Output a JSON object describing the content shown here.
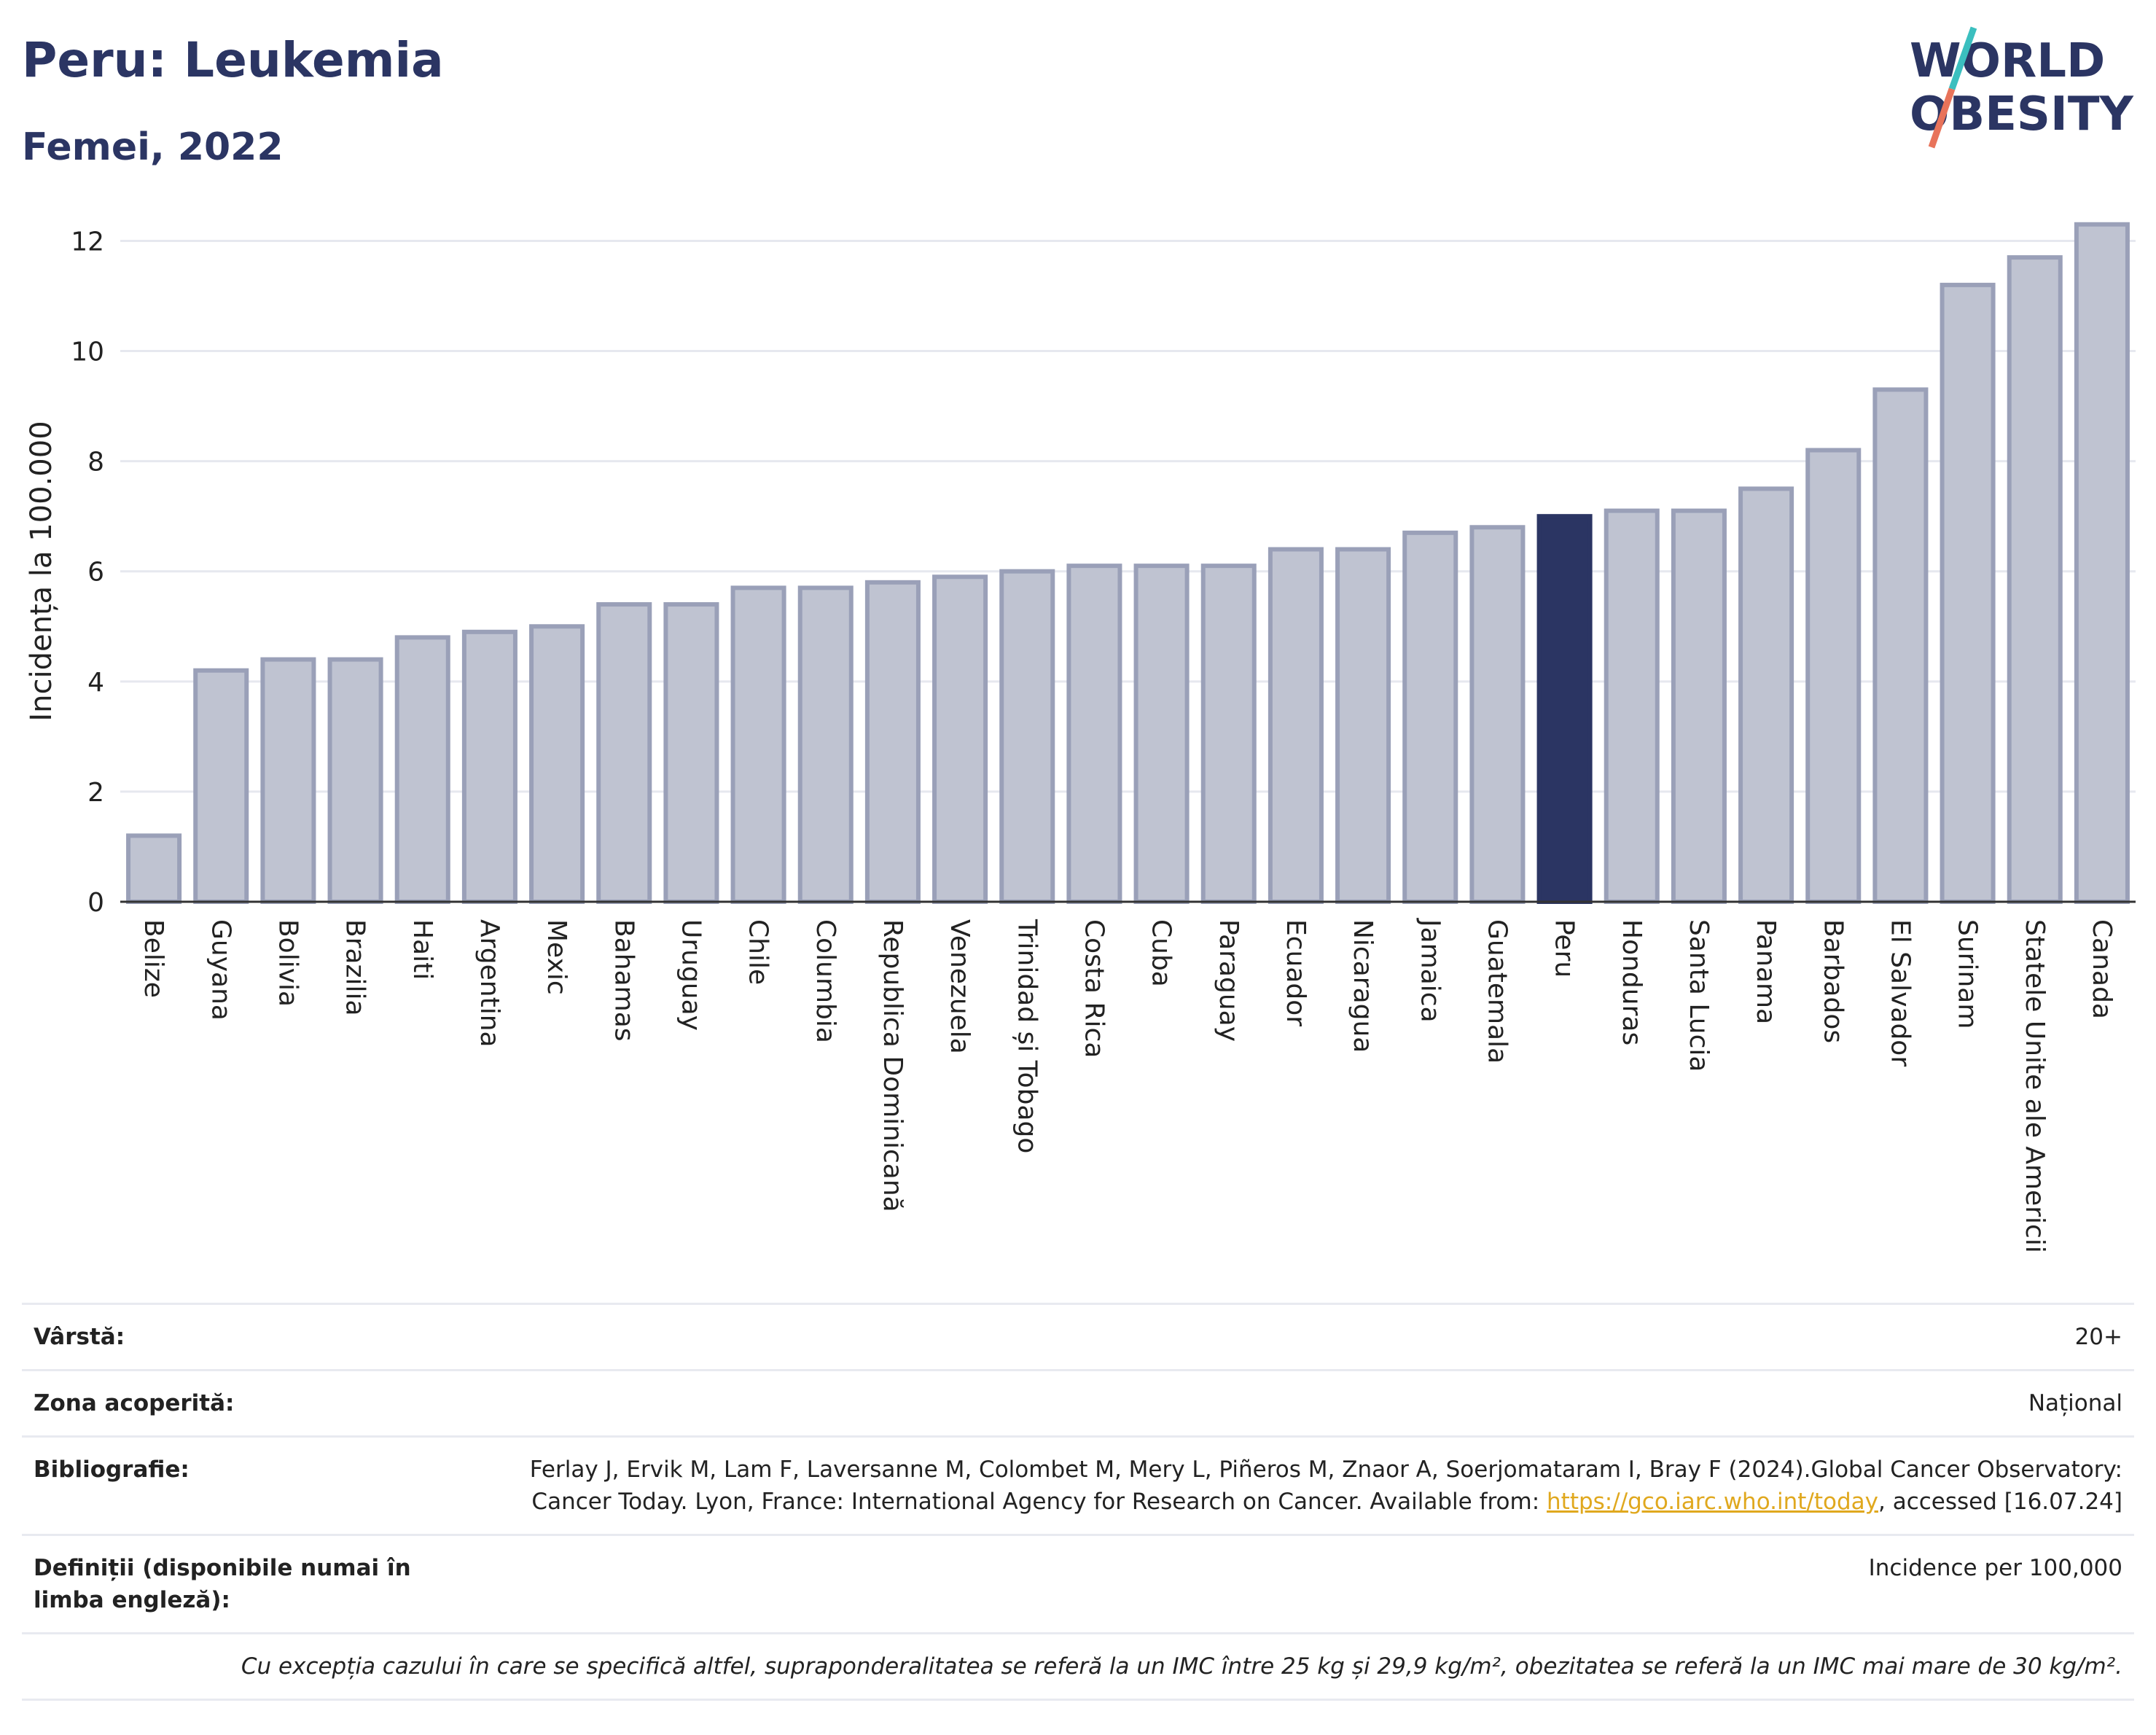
{
  "header": {
    "title": "Peru: Leukemia",
    "subtitle": "Femei, 2022"
  },
  "logo": {
    "line1": "WORLD",
    "line2": "OBESITY",
    "colors": {
      "text": "#2b3563",
      "slash_teal": "#3bbfbf",
      "slash_coral": "#e8735a"
    }
  },
  "colors": {
    "bar_fill": "#bfc3d1",
    "bar_stroke": "#9aa0b8",
    "highlight": "#2b3563",
    "grid": "#e6e8ef",
    "axis": "#333333"
  },
  "chart_data": {
    "type": "bar",
    "title": "Peru: Leukemia",
    "subtitle": "Femei, 2022",
    "ylabel": "Incidența la 100.000",
    "xlabel": "",
    "ylim": [
      0,
      12.8
    ],
    "yticks": [
      0,
      2,
      4,
      6,
      8,
      10,
      12
    ],
    "grid": true,
    "highlight_category": "Peru",
    "categories": [
      "Belize",
      "Guyana",
      "Bolivia",
      "Brazilia",
      "Haiti",
      "Argentina",
      "Mexic",
      "Bahamas",
      "Uruguay",
      "Chile",
      "Columbia",
      "Republica Dominicană",
      "Venezuela",
      "Trinidad și Tobago",
      "Costa Rica",
      "Cuba",
      "Paraguay",
      "Ecuador",
      "Nicaragua",
      "Jamaica",
      "Guatemala",
      "Peru",
      "Honduras",
      "Santa Lucia",
      "Panama",
      "Barbados",
      "El Salvador",
      "Surinam",
      "Statele Unite ale Americii",
      "Canada"
    ],
    "values": [
      1.2,
      4.2,
      4.4,
      4.4,
      4.8,
      4.9,
      5.0,
      5.4,
      5.4,
      5.7,
      5.7,
      5.8,
      5.9,
      6.0,
      6.1,
      6.1,
      6.1,
      6.4,
      6.4,
      6.7,
      6.8,
      7.0,
      7.1,
      7.1,
      7.5,
      8.2,
      9.3,
      11.2,
      11.7,
      12.3
    ]
  },
  "meta": {
    "rows": [
      {
        "label": "Vârstă:",
        "value": "20+"
      },
      {
        "label": "Zona acoperită:",
        "value": "Național"
      },
      {
        "label": "Bibliografie:",
        "value_pre": "Ferlay J, Ervik M, Lam F, Laversanne M, Colombet M, Mery L, Piñeros M, Znaor A, Soerjomataram I, Bray F (2024).Global Cancer Observatory: Cancer Today. Lyon, France: International Agency for Research on Cancer. Available from: ",
        "link": "https://gco.iarc.who.int/today",
        "value_post": ", accessed [16.07.24]"
      },
      {
        "label": "Definiții (disponibile numai în limba engleză):",
        "value": "Incidence per 100,000"
      }
    ],
    "footnote": "Cu excepția cazului în care se specifică altfel, supraponderalitatea se referă la un IMC între 25 kg și 29,9 kg/m², obezitatea se referă la un IMC mai mare de 30 kg/m²."
  }
}
